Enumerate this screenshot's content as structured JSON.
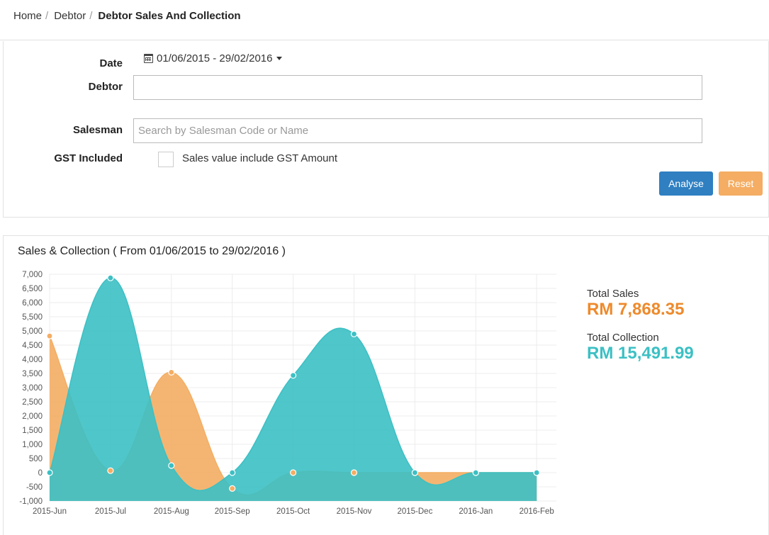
{
  "breadcrumb": {
    "home": "Home",
    "debtor": "Debtor",
    "current": "Debtor Sales And Collection"
  },
  "filters": {
    "date_label": "Date",
    "date_range": "01/06/2015 - 29/02/2016",
    "debtor_label": "Debtor",
    "debtor_value": "",
    "salesman_label": "Salesman",
    "salesman_placeholder": "Search by Salesman Code or Name",
    "gst_label": "GST Included",
    "gst_checkbox_label": "Sales value include GST Amount",
    "gst_checked": false,
    "analyse_label": "Analyse",
    "reset_label": "Reset"
  },
  "chart_panel": {
    "title": "Sales & Collection ( From 01/06/2015 to 29/02/2016 )",
    "total_sales_label": "Total Sales",
    "total_sales_value": "RM 7,868.35",
    "total_collection_label": "Total Collection",
    "total_collection_value": "RM 15,491.99"
  },
  "chart_data": {
    "type": "area",
    "categories": [
      "2015-Jun",
      "2015-Jul",
      "2015-Aug",
      "2015-Sep",
      "2015-Oct",
      "2015-Nov",
      "2015-Dec",
      "2016-Jan",
      "2016-Feb"
    ],
    "ylim": [
      -1000,
      7000
    ],
    "yticks": [
      -1000,
      -500,
      0,
      500,
      1000,
      1500,
      2000,
      2500,
      3000,
      3500,
      4000,
      4500,
      5000,
      5500,
      6000,
      6500,
      7000
    ],
    "ytick_labels": [
      "-1,000",
      "-500",
      "0",
      "500",
      "1,000",
      "1,500",
      "2,000",
      "2,500",
      "3,000",
      "3,500",
      "4,000",
      "4,500",
      "5,000",
      "5,500",
      "6,000",
      "6,500",
      "7,000"
    ],
    "grid": true,
    "series": [
      {
        "values": [
          4820,
          70,
          3540,
          -560,
          0,
          0,
          0,
          0,
          0
        ],
        "color": "#f4ad63"
      },
      {
        "values": [
          0,
          6870,
          250,
          0,
          3430,
          4890,
          0,
          0,
          0
        ],
        "color": "#3cc0c4"
      }
    ]
  }
}
